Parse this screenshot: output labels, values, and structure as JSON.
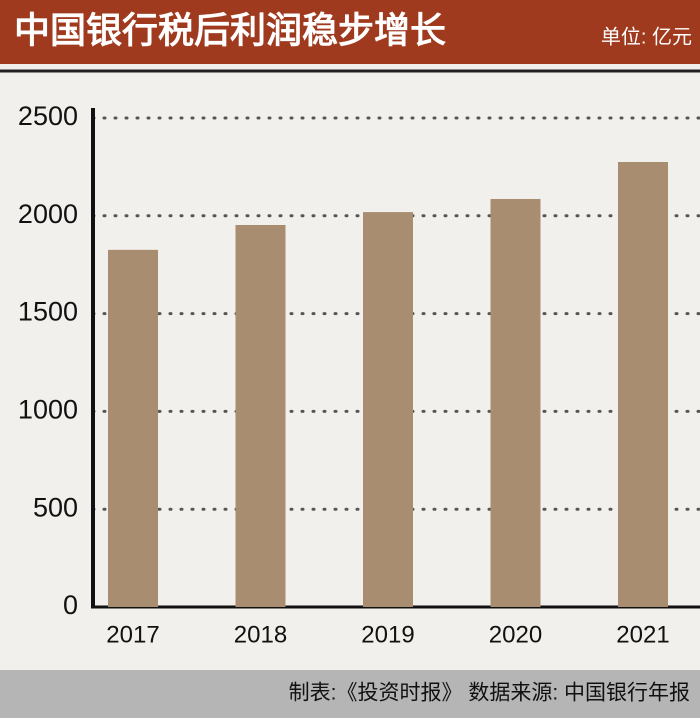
{
  "chart_data": {
    "type": "bar",
    "title": "中国银行税后利润稳步增长",
    "unit": "单位: 亿元",
    "source": "制表:《投资时报》 数据来源: 中国银行年报",
    "categories": [
      "2017",
      "2018",
      "2019",
      "2020",
      "2021"
    ],
    "values": [
      1826,
      1953,
      2019,
      2086,
      2275
    ],
    "color": "#a88d70",
    "ylim": [
      0,
      2500
    ],
    "yticks": [
      0,
      500,
      1000,
      1500,
      2000,
      2500
    ],
    "grid": true
  }
}
